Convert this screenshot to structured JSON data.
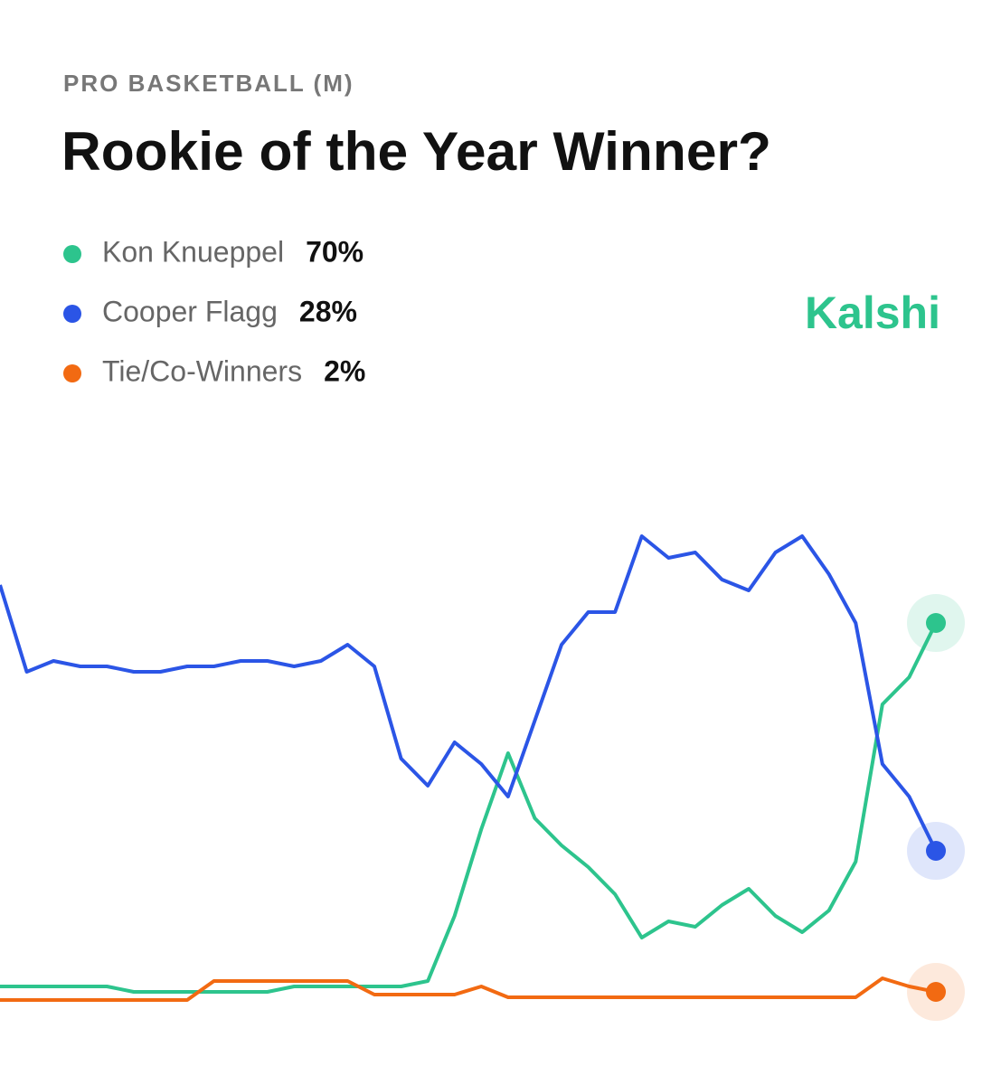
{
  "chart_data": {
    "type": "line",
    "subtitle": "PRO BASKETBALL (M)",
    "title": "Rookie of the Year Winner?",
    "brand": "Kalshi",
    "ylim": [
      0,
      100
    ],
    "categories": [
      null,
      null,
      null,
      null,
      null,
      null,
      null,
      null,
      null,
      null,
      null,
      null,
      null,
      null,
      null,
      null,
      null,
      null,
      null,
      null,
      null,
      null,
      null,
      null,
      null,
      null,
      null,
      null,
      null,
      null,
      null,
      null,
      null,
      null,
      null,
      null
    ],
    "series": [
      {
        "name": "Kon Knueppel",
        "color": "#2dc48d",
        "values": [
          3,
          3,
          3,
          3,
          3,
          2,
          2,
          2,
          2,
          2,
          2,
          3,
          3,
          3,
          3,
          3,
          4,
          16,
          32,
          46,
          34,
          29,
          25,
          20,
          12,
          15,
          14,
          18,
          21,
          16,
          13,
          17,
          26,
          55,
          60,
          70
        ],
        "value_labels": [
          null,
          null,
          null,
          null,
          null,
          null,
          null,
          null,
          null,
          null,
          null,
          null,
          null,
          null,
          null,
          null,
          null,
          null,
          null,
          null,
          null,
          null,
          null,
          null,
          null,
          null,
          null,
          null,
          null,
          null,
          null,
          null,
          null,
          null,
          null,
          "70%"
        ]
      },
      {
        "name": "Cooper Flagg",
        "color": "#2b55e6",
        "values": [
          77,
          61,
          63,
          62,
          62,
          61,
          61,
          62,
          62,
          63,
          63,
          62,
          63,
          66,
          62,
          45,
          40,
          48,
          44,
          38,
          52,
          66,
          72,
          72,
          86,
          82,
          83,
          78,
          76,
          83,
          86,
          79,
          70,
          44,
          38,
          28
        ],
        "value_labels": [
          null,
          null,
          null,
          null,
          null,
          null,
          null,
          null,
          null,
          null,
          null,
          null,
          null,
          null,
          null,
          null,
          null,
          null,
          null,
          null,
          null,
          null,
          null,
          null,
          null,
          null,
          null,
          null,
          null,
          null,
          null,
          null,
          null,
          null,
          null,
          "28%"
        ]
      },
      {
        "name": "Tie/Co-Winners",
        "color": "#f26a12",
        "values": [
          0.5,
          0.5,
          0.5,
          0.5,
          0.5,
          0.5,
          0.5,
          0.5,
          4,
          4,
          4,
          4,
          4,
          4,
          1.5,
          1.5,
          1.5,
          1.5,
          3,
          1,
          1,
          1,
          1,
          1,
          1,
          1,
          1,
          1,
          1,
          1,
          1,
          1,
          1,
          4.5,
          3,
          2
        ],
        "value_labels": [
          null,
          null,
          null,
          null,
          null,
          null,
          null,
          null,
          null,
          null,
          null,
          null,
          null,
          null,
          null,
          null,
          null,
          null,
          null,
          null,
          null,
          null,
          null,
          null,
          null,
          null,
          null,
          null,
          null,
          null,
          null,
          null,
          null,
          null,
          null,
          "2%"
        ]
      }
    ]
  }
}
